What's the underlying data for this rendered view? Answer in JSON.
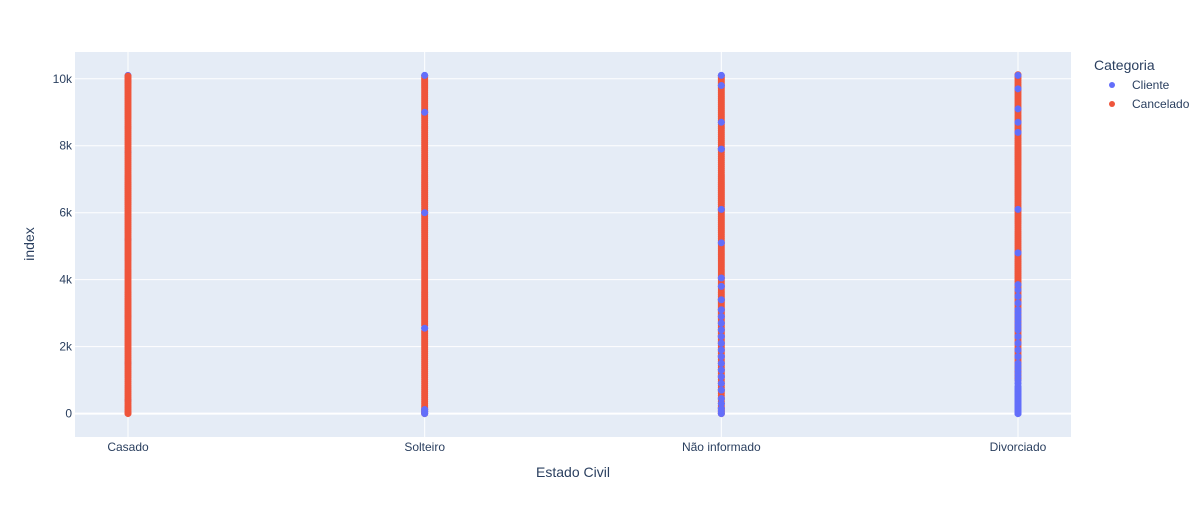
{
  "chart_data": {
    "type": "scatter",
    "xlabel": "Estado Civil",
    "ylabel": "index",
    "categories": [
      "Casado",
      "Solteiro",
      "Não informado",
      "Divorciado"
    ],
    "ylim": [
      -700,
      10800
    ],
    "yticks": [
      0,
      2000,
      4000,
      6000,
      8000,
      10000
    ],
    "ytick_labels": [
      "0",
      "2k",
      "4k",
      "6k",
      "8k",
      "10k"
    ],
    "grid": true,
    "legend": {
      "title": "Categoria",
      "placement": "top-right",
      "entries": [
        "Cliente",
        "Cancelado"
      ]
    },
    "colors": {
      "Cliente": "#636efa",
      "Cancelado": "#ef553b",
      "plot_bg": "#e5ecf6",
      "grid": "#ffffff",
      "text": "#2a3f5f"
    },
    "series": [
      {
        "name": "Cliente",
        "note_values": "index values of marked points per category (dense columns, approximate)",
        "points": {
          "Casado": [
            20,
            400,
            1500,
            2900,
            5200,
            7800,
            9900,
            10100
          ],
          "Solteiro": [
            0,
            60,
            120,
            2550,
            6000,
            9000,
            10100
          ],
          "Não informado": [
            0,
            80,
            150,
            300,
            450,
            700,
            900,
            1100,
            1300,
            1500,
            1700,
            1900,
            2100,
            2300,
            2500,
            2700,
            2900,
            3100,
            3400,
            3800,
            4050,
            5100,
            6100,
            7900,
            8700,
            9800,
            10100
          ],
          "Divorciado": [
            0,
            50,
            100,
            150,
            200,
            250,
            300,
            350,
            400,
            450,
            500,
            550,
            600,
            650,
            700,
            750,
            800,
            900,
            1000,
            1100,
            1200,
            1300,
            1400,
            1500,
            1700,
            1900,
            2100,
            2300,
            2500,
            2600,
            2700,
            2800,
            2900,
            3000,
            3100,
            3300,
            3500,
            3700,
            3850,
            4800,
            6100,
            8400,
            8700,
            9100,
            9700,
            10100
          ]
        }
      },
      {
        "name": "Cancelado",
        "note_values": "index values of marked points per category (near-continuous red columns)",
        "points": {
          "Casado": {
            "from": 0,
            "to": 10130,
            "step": 60
          },
          "Solteiro": {
            "from": 0,
            "to": 10130,
            "step": 60,
            "gaps": [
              2550,
              60
            ]
          },
          "Não informado": {
            "from": 0,
            "to": 10130,
            "step": 60
          },
          "Divorciado": {
            "from": 1000,
            "to": 10130,
            "step": 60
          }
        }
      }
    ]
  }
}
